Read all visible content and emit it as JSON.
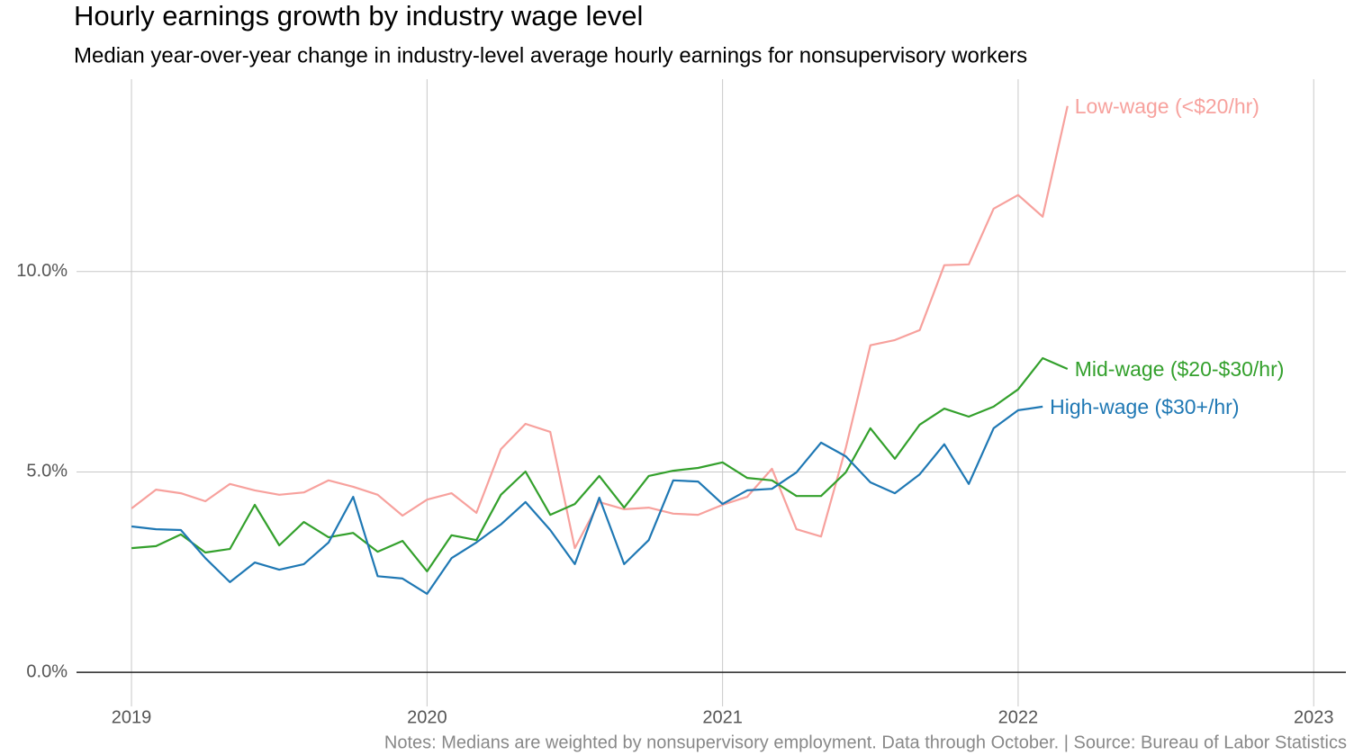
{
  "chart_data": {
    "type": "line",
    "title": "Hourly earnings growth by industry wage level",
    "subtitle": "Median year-over-year change in industry-level average hourly earnings for nonsupervisory workers",
    "note": "Notes: Medians are weighted by nonsupervisory employment. Data through October. | Source: Bureau of Labor Statistics",
    "x": [
      2019,
      2019.083,
      2019.167,
      2019.25,
      2019.333,
      2019.417,
      2019.5,
      2019.583,
      2019.667,
      2019.75,
      2019.833,
      2019.917,
      2020,
      2020.083,
      2020.167,
      2020.25,
      2020.333,
      2020.417,
      2020.5,
      2020.583,
      2020.667,
      2020.75,
      2020.833,
      2020.917,
      2021,
      2021.083,
      2021.167,
      2021.25,
      2021.333,
      2021.417,
      2021.5,
      2021.583,
      2021.667,
      2021.75,
      2021.833,
      2021.917,
      2022,
      2022.083,
      2022.167
    ],
    "series": [
      {
        "name": "Low-wage (<$20/hr)",
        "color": "#f7a19d",
        "values": [
          4.09,
          4.56,
          4.47,
          4.27,
          4.7,
          4.54,
          4.43,
          4.49,
          4.79,
          4.63,
          4.43,
          3.91,
          4.31,
          4.47,
          3.98,
          5.57,
          6.2,
          6.0,
          3.1,
          4.25,
          4.07,
          4.11,
          3.96,
          3.93,
          4.18,
          4.38,
          5.08,
          3.57,
          3.39,
          5.6,
          8.16,
          8.29,
          8.54,
          10.16,
          10.18,
          11.57,
          11.91,
          11.37,
          14.13
        ]
      },
      {
        "name": "Mid-wage ($20-$30/hr)",
        "color": "#33a02c",
        "values": [
          3.1,
          3.15,
          3.44,
          2.99,
          3.08,
          4.18,
          3.17,
          3.75,
          3.37,
          3.48,
          3.01,
          3.28,
          2.52,
          3.42,
          3.3,
          4.43,
          5.01,
          3.93,
          4.2,
          4.9,
          4.11,
          4.9,
          5.03,
          5.1,
          5.24,
          4.85,
          4.79,
          4.4,
          4.4,
          4.99,
          6.09,
          5.33,
          6.18,
          6.58,
          6.38,
          6.63,
          7.06,
          7.84,
          7.57
        ]
      },
      {
        "name": "High-wage ($30+/hr)",
        "color": "#1f78b4",
        "values": [
          3.64,
          3.57,
          3.55,
          2.85,
          2.25,
          2.74,
          2.56,
          2.7,
          3.24,
          4.38,
          2.4,
          2.34,
          1.96,
          2.85,
          3.24,
          3.69,
          4.25,
          3.55,
          2.7,
          4.36,
          2.7,
          3.3,
          4.79,
          4.76,
          4.2,
          4.54,
          4.58,
          4.99,
          5.73,
          5.39,
          4.74,
          4.47,
          4.94,
          5.69,
          4.7,
          6.09,
          6.54,
          6.63,
          null
        ]
      }
    ],
    "xlim": [
      2018.814,
      2023.109
    ],
    "xticks": [
      2019,
      2020,
      2021,
      2022,
      2023
    ],
    "ylim": [
      -0.85,
      14.8
    ],
    "yticks": [
      {
        "value": 0,
        "label": "0.0%"
      },
      {
        "value": 5,
        "label": "5.0%"
      },
      {
        "value": 10,
        "label": "10.0%"
      }
    ],
    "grid": true
  }
}
